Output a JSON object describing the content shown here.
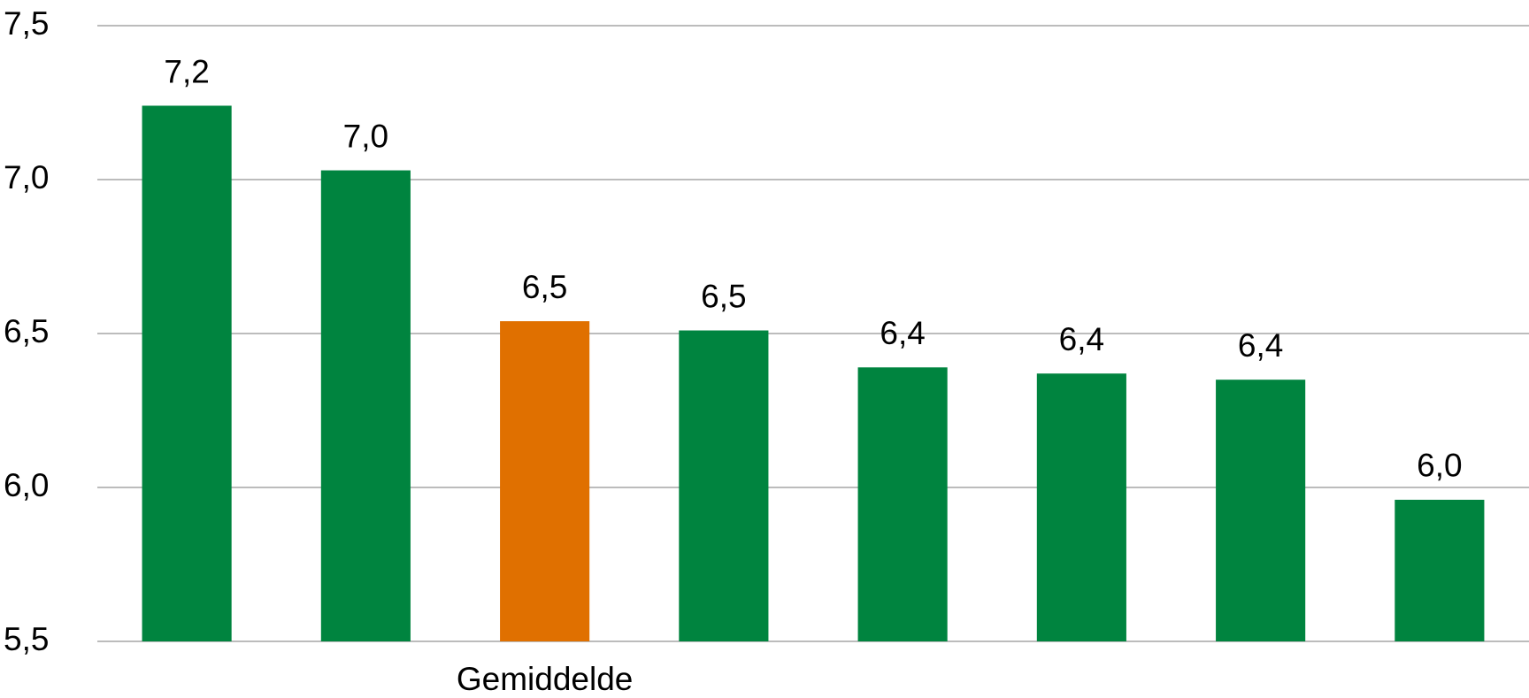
{
  "chart_data": {
    "type": "bar",
    "categories": [
      null,
      null,
      "Gemiddelde",
      null,
      null,
      null,
      null,
      null
    ],
    "values": [
      7.24,
      7.03,
      6.54,
      6.51,
      6.39,
      6.37,
      6.35,
      5.96
    ],
    "value_labels": [
      "7,2",
      "7,0",
      "6,5",
      "6,5",
      "6,4",
      "6,4",
      "6,4",
      "6,0"
    ],
    "colors": [
      "#00843f",
      "#00843f",
      "#e07000",
      "#00843f",
      "#00843f",
      "#00843f",
      "#00843f",
      "#00843f"
    ],
    "ylim": [
      5.5,
      7.5
    ],
    "yticks": [
      {
        "value": 5.5,
        "label": "5,5"
      },
      {
        "value": 6.0,
        "label": "6,0"
      },
      {
        "value": 6.5,
        "label": "6,5"
      },
      {
        "value": 7.0,
        "label": "7,0"
      },
      {
        "value": 7.5,
        "label": "7,5"
      }
    ],
    "grid": true
  }
}
